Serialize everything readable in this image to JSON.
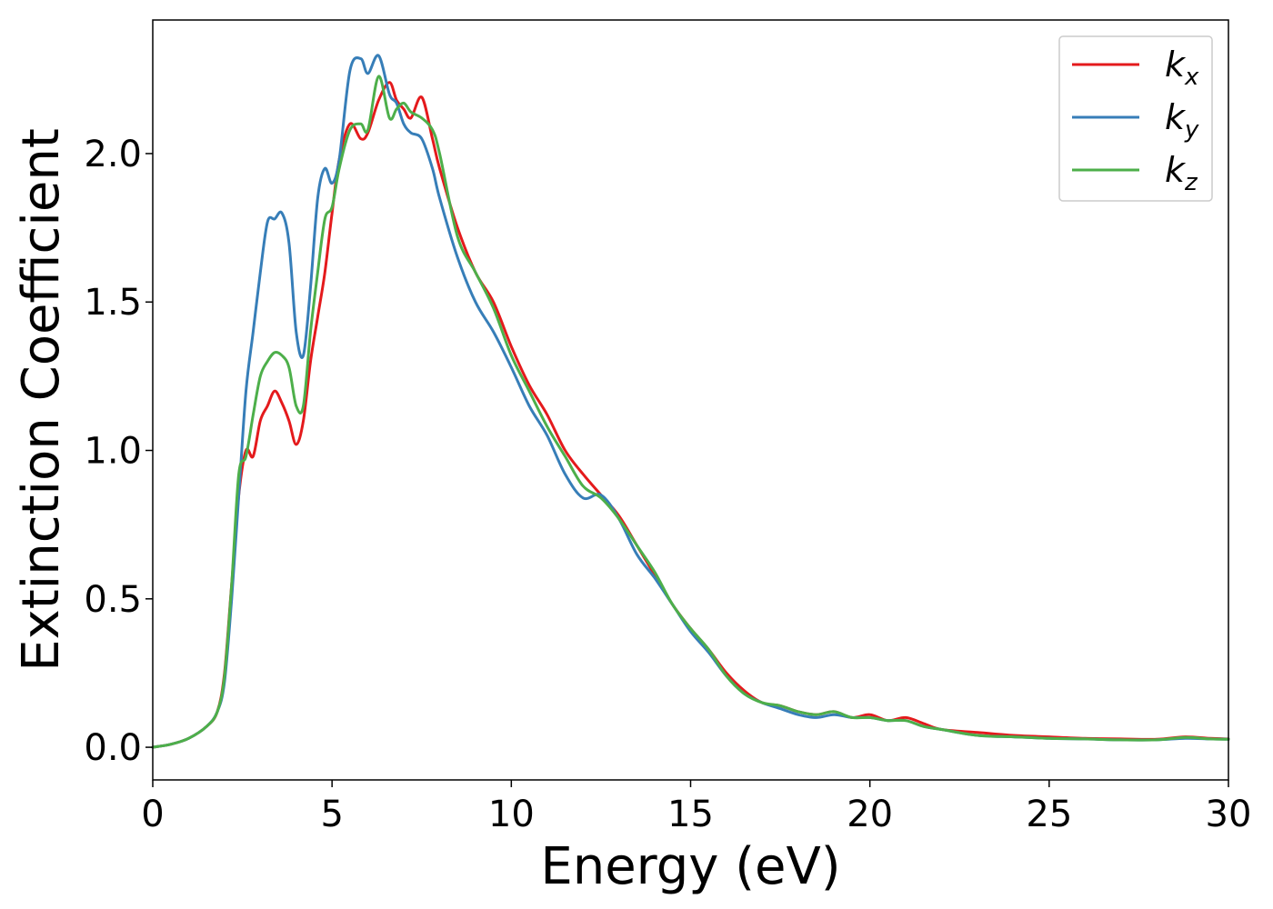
{
  "chart_data": {
    "type": "line",
    "xlabel": "Energy (eV)",
    "ylabel": "Extinction Coefficient",
    "xlim": [
      0,
      30
    ],
    "ylim": [
      -0.11,
      2.45
    ],
    "xticks": [
      0,
      5,
      10,
      15,
      20,
      25,
      30
    ],
    "yticks": [
      0.0,
      0.5,
      1.0,
      1.5,
      2.0
    ],
    "xtick_labels": [
      "0",
      "5",
      "10",
      "15",
      "20",
      "25",
      "30"
    ],
    "ytick_labels": [
      "0.0",
      "0.5",
      "1.0",
      "1.5",
      "2.0"
    ],
    "grid": false,
    "legend_position": "top-right",
    "series": [
      {
        "name": "k_x",
        "label_base": "k",
        "label_sub": "x",
        "color": "#e41a1c",
        "x": [
          0,
          0.5,
          1.0,
          1.5,
          1.8,
          2.0,
          2.2,
          2.4,
          2.6,
          2.8,
          3.0,
          3.2,
          3.4,
          3.6,
          3.8,
          4.0,
          4.2,
          4.4,
          4.6,
          4.8,
          5.0,
          5.2,
          5.5,
          5.8,
          6.0,
          6.3,
          6.6,
          6.8,
          7.0,
          7.2,
          7.5,
          7.8,
          8.0,
          8.5,
          9.0,
          9.5,
          10.0,
          10.5,
          11.0,
          11.5,
          12.0,
          12.5,
          13.0,
          13.5,
          14.0,
          14.5,
          15.0,
          15.5,
          16.0,
          16.5,
          17.0,
          17.5,
          18.0,
          18.5,
          19.0,
          19.5,
          20.0,
          20.5,
          21.0,
          21.5,
          22.0,
          23.0,
          24.0,
          25.0,
          26.0,
          27.0,
          28.0,
          28.8,
          29.5,
          30.0
        ],
        "y": [
          0.0,
          0.01,
          0.03,
          0.07,
          0.12,
          0.25,
          0.55,
          0.85,
          1.0,
          0.98,
          1.1,
          1.15,
          1.2,
          1.16,
          1.1,
          1.02,
          1.1,
          1.3,
          1.45,
          1.6,
          1.8,
          1.98,
          2.1,
          2.05,
          2.07,
          2.18,
          2.24,
          2.18,
          2.15,
          2.12,
          2.19,
          2.05,
          1.95,
          1.75,
          1.6,
          1.5,
          1.35,
          1.22,
          1.12,
          1.0,
          0.92,
          0.85,
          0.78,
          0.68,
          0.58,
          0.48,
          0.4,
          0.33,
          0.25,
          0.19,
          0.15,
          0.14,
          0.12,
          0.11,
          0.12,
          0.1,
          0.11,
          0.09,
          0.1,
          0.08,
          0.06,
          0.05,
          0.04,
          0.035,
          0.03,
          0.028,
          0.027,
          0.035,
          0.03,
          0.028
        ]
      },
      {
        "name": "k_y",
        "label_base": "k",
        "label_sub": "y",
        "color": "#377eb8",
        "x": [
          0,
          0.5,
          1.0,
          1.5,
          1.8,
          2.0,
          2.2,
          2.4,
          2.6,
          2.8,
          3.0,
          3.2,
          3.4,
          3.6,
          3.8,
          4.0,
          4.2,
          4.4,
          4.6,
          4.8,
          5.0,
          5.2,
          5.5,
          5.8,
          6.0,
          6.3,
          6.6,
          6.8,
          7.0,
          7.2,
          7.5,
          7.8,
          8.0,
          8.5,
          9.0,
          9.5,
          10.0,
          10.5,
          11.0,
          11.5,
          12.0,
          12.5,
          13.0,
          13.5,
          14.0,
          14.5,
          15.0,
          15.5,
          16.0,
          16.5,
          17.0,
          17.5,
          18.0,
          18.5,
          19.0,
          19.5,
          20.0,
          20.5,
          21.0,
          21.5,
          22.0,
          23.0,
          24.0,
          25.0,
          26.0,
          27.0,
          28.0,
          28.8,
          29.5,
          30.0
        ],
        "y": [
          0.0,
          0.01,
          0.03,
          0.07,
          0.12,
          0.22,
          0.5,
          0.85,
          1.2,
          1.4,
          1.6,
          1.77,
          1.78,
          1.8,
          1.7,
          1.4,
          1.32,
          1.55,
          1.85,
          1.95,
          1.9,
          1.98,
          2.28,
          2.32,
          2.27,
          2.33,
          2.2,
          2.17,
          2.1,
          2.07,
          2.05,
          1.95,
          1.85,
          1.65,
          1.5,
          1.4,
          1.28,
          1.15,
          1.05,
          0.92,
          0.84,
          0.85,
          0.77,
          0.65,
          0.57,
          0.48,
          0.39,
          0.32,
          0.24,
          0.18,
          0.15,
          0.13,
          0.11,
          0.1,
          0.11,
          0.1,
          0.1,
          0.09,
          0.09,
          0.07,
          0.06,
          0.04,
          0.035,
          0.03,
          0.028,
          0.025,
          0.025,
          0.03,
          0.028,
          0.027
        ]
      },
      {
        "name": "k_z",
        "label_base": "k",
        "label_sub": "z",
        "color": "#4daf4a",
        "x": [
          0,
          0.5,
          1.0,
          1.5,
          1.8,
          2.0,
          2.2,
          2.4,
          2.6,
          2.8,
          3.0,
          3.2,
          3.4,
          3.6,
          3.8,
          4.0,
          4.2,
          4.4,
          4.6,
          4.8,
          5.0,
          5.2,
          5.5,
          5.8,
          6.0,
          6.3,
          6.6,
          6.8,
          7.0,
          7.2,
          7.5,
          7.8,
          8.0,
          8.5,
          9.0,
          9.5,
          10.0,
          10.5,
          11.0,
          11.5,
          12.0,
          12.5,
          13.0,
          13.5,
          14.0,
          14.5,
          15.0,
          15.5,
          16.0,
          16.5,
          17.0,
          17.5,
          18.0,
          18.5,
          19.0,
          19.5,
          20.0,
          20.5,
          21.0,
          21.5,
          22.0,
          23.0,
          24.0,
          25.0,
          26.0,
          27.0,
          28.0,
          28.8,
          29.5,
          30.0
        ],
        "y": [
          0.0,
          0.01,
          0.03,
          0.07,
          0.12,
          0.24,
          0.55,
          0.92,
          0.98,
          1.12,
          1.25,
          1.3,
          1.33,
          1.32,
          1.28,
          1.15,
          1.15,
          1.4,
          1.6,
          1.78,
          1.82,
          1.95,
          2.08,
          2.1,
          2.08,
          2.26,
          2.12,
          2.15,
          2.17,
          2.14,
          2.12,
          2.08,
          2.0,
          1.72,
          1.6,
          1.48,
          1.32,
          1.2,
          1.08,
          0.98,
          0.88,
          0.84,
          0.77,
          0.68,
          0.59,
          0.48,
          0.4,
          0.33,
          0.24,
          0.18,
          0.15,
          0.14,
          0.12,
          0.11,
          0.12,
          0.1,
          0.1,
          0.09,
          0.09,
          0.07,
          0.06,
          0.04,
          0.035,
          0.03,
          0.028,
          0.025,
          0.025,
          0.033,
          0.028,
          0.027
        ]
      }
    ]
  }
}
